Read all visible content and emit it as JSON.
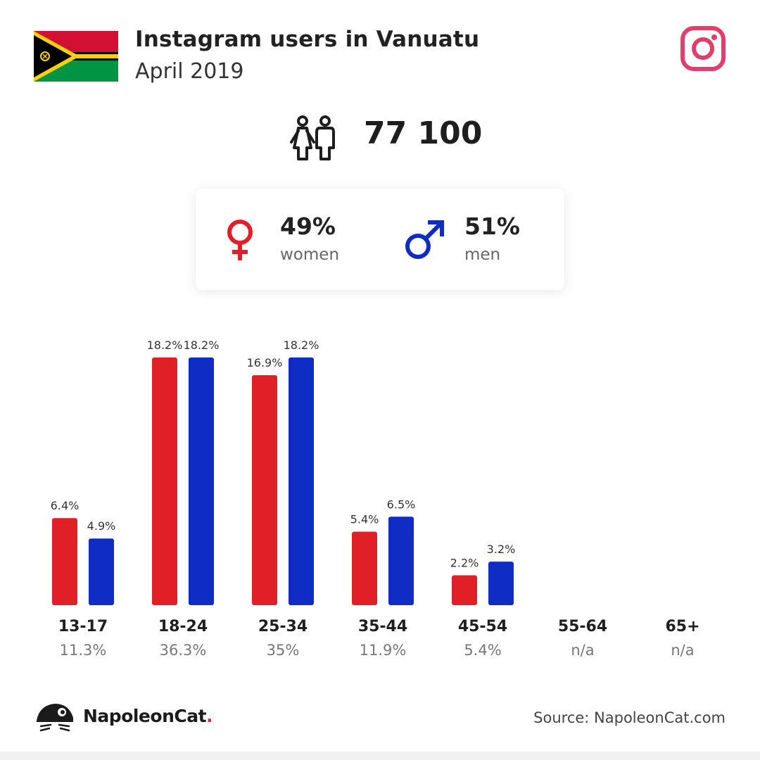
{
  "header": {
    "title": "Instagram users in Vanuatu",
    "subtitle": "April 2019"
  },
  "total_users": "77 100",
  "gender": {
    "women_pct": "49%",
    "women_label": "women",
    "men_pct": "51%",
    "men_label": "men"
  },
  "colors": {
    "women": "#e02026",
    "men": "#0f2cc4",
    "instagram": "#e23e6b"
  },
  "icons": {
    "flag": "vanuatu-flag-icon",
    "instagram": "instagram-icon",
    "people": "people-icon",
    "female": "female-symbol-icon",
    "male": "male-symbol-icon",
    "logo": "napoleoncat-logo-icon"
  },
  "chart_data": {
    "type": "bar",
    "categories": [
      "13-17",
      "18-24",
      "25-34",
      "35-44",
      "45-54",
      "55-64",
      "65+"
    ],
    "category_shares": [
      "11.3%",
      "36.3%",
      "35%",
      "11.9%",
      "5.4%",
      "n/a",
      "n/a"
    ],
    "series": [
      {
        "name": "women",
        "values": [
          6.4,
          18.2,
          16.9,
          5.4,
          2.2,
          null,
          null
        ],
        "labels": [
          "6.4%",
          "18.2%",
          "16.9%",
          "5.4%",
          "2.2%",
          "",
          ""
        ]
      },
      {
        "name": "men",
        "values": [
          4.9,
          18.2,
          18.2,
          6.5,
          3.2,
          null,
          null
        ],
        "labels": [
          "4.9%",
          "18.2%",
          "18.2%",
          "6.5%",
          "3.2%",
          "",
          ""
        ]
      }
    ],
    "ylim": [
      0,
      18.2
    ]
  },
  "footer": {
    "brand": "NapoleonCat",
    "brand_dot": ".",
    "source": "Source: NapoleonCat.com"
  }
}
